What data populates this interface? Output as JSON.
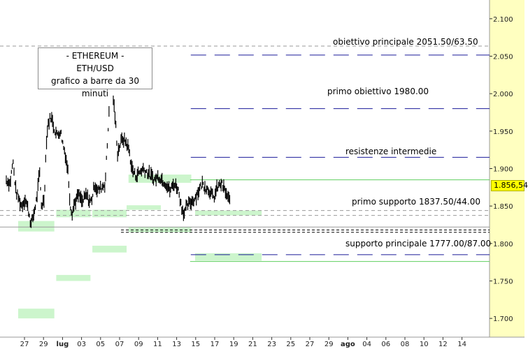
{
  "title_box": {
    "line1": "- ETHEREUM -",
    "line2": "ETH/USD",
    "line3": "grafico a barre da 30 minuti"
  },
  "annotations": {
    "target_main": "obiettivo principale 2051.50/63.50",
    "target_first": "primo obiettivo 1980.00",
    "resistance": "resistenze intermedie",
    "support_first": "primo supporto 1837.50/44.00",
    "support_main": "supporto principale 1777.00/87.00"
  },
  "current_price_label": "1.856,54",
  "colors": {
    "price_axis_bg": "#ffffc0",
    "zone_green": "#ccf5cc",
    "target_line": "#1a1a99",
    "bars": "#000000",
    "current_price_bg": "#ffff00"
  },
  "chart_data": {
    "type": "bar",
    "ylim": [
      1675,
      2125
    ],
    "y_ticks": [
      {
        "v": 2100,
        "label": "2.100"
      },
      {
        "v": 2050,
        "label": "2.050"
      },
      {
        "v": 2000,
        "label": "2.000"
      },
      {
        "v": 1950,
        "label": "1.950"
      },
      {
        "v": 1900,
        "label": "1.900"
      },
      {
        "v": 1850,
        "label": "1.850"
      },
      {
        "v": 1800,
        "label": "1.800"
      },
      {
        "v": 1750,
        "label": "1.750"
      },
      {
        "v": 1700,
        "label": "1.700"
      }
    ],
    "x_ticks": [
      "27",
      "29",
      "lug",
      "03",
      "05",
      "07",
      "09",
      "11",
      "13",
      "15",
      "17",
      "19",
      "21",
      "23",
      "25",
      "27",
      "29",
      "ago",
      "04",
      "06",
      "08",
      "10",
      "12",
      "14"
    ],
    "current_price": 1856.54,
    "target_levels": [
      2051.5,
      1980,
      1915,
      1785
    ],
    "support_levels": [
      1818,
      1815
    ],
    "zones": [
      {
        "day": 0,
        "days": 1.9,
        "lo": 1816,
        "hi": 1830
      },
      {
        "day": 0,
        "days": 1.9,
        "lo": 1700,
        "hi": 1713
      },
      {
        "day": 2.0,
        "days": 1.8,
        "lo": 1835,
        "hi": 1845
      },
      {
        "day": 2.0,
        "days": 1.8,
        "lo": 1750,
        "hi": 1758
      },
      {
        "day": 3.9,
        "days": 1.8,
        "lo": 1835,
        "hi": 1845
      },
      {
        "day": 3.9,
        "days": 1.8,
        "lo": 1788,
        "hi": 1797
      },
      {
        "day": 5.7,
        "days": 1.8,
        "lo": 1845,
        "hi": 1851
      },
      {
        "day": 5.8,
        "days": 3.3,
        "lo": 1881,
        "hi": 1892
      },
      {
        "day": 5.8,
        "days": 3.3,
        "lo": 1815,
        "hi": 1822
      },
      {
        "day": 9.3,
        "days": 3.5,
        "lo": 1837.5,
        "hi": 1844
      },
      {
        "day": 9.3,
        "days": 3.5,
        "lo": 1777,
        "hi": 1787
      }
    ],
    "price_path": [
      [
        0.0,
        1885
      ],
      [
        0.2,
        1880
      ],
      [
        0.35,
        1910
      ],
      [
        0.5,
        1870
      ],
      [
        0.65,
        1860
      ],
      [
        0.8,
        1850
      ],
      [
        1.0,
        1860
      ],
      [
        1.1,
        1850
      ],
      [
        1.2,
        1840
      ],
      [
        1.3,
        1825
      ],
      [
        1.45,
        1840
      ],
      [
        1.6,
        1860
      ],
      [
        1.75,
        1895
      ],
      [
        1.85,
        1850
      ],
      [
        2.0,
        1860
      ],
      [
        2.1,
        1935
      ],
      [
        2.2,
        1960
      ],
      [
        2.35,
        1970
      ],
      [
        2.5,
        1955
      ],
      [
        2.65,
        1945
      ],
      [
        2.85,
        1950
      ],
      [
        3.0,
        1930
      ],
      [
        3.1,
        1920
      ],
      [
        3.25,
        1895
      ],
      [
        3.35,
        1855
      ],
      [
        3.45,
        1840
      ],
      [
        3.6,
        1855
      ],
      [
        3.8,
        1865
      ],
      [
        4.0,
        1855
      ],
      [
        4.2,
        1865
      ],
      [
        4.4,
        1855
      ],
      [
        4.5,
        1860
      ],
      [
        4.65,
        1880
      ],
      [
        4.8,
        1870
      ],
      [
        5.0,
        1875
      ],
      [
        5.2,
        1880
      ],
      [
        5.35,
        1950
      ],
      [
        5.45,
        2010
      ],
      [
        5.55,
        2020
      ],
      [
        5.65,
        1985
      ],
      [
        5.75,
        1960
      ],
      [
        5.85,
        1920
      ],
      [
        5.95,
        1930
      ],
      [
        6.1,
        1940
      ],
      [
        6.3,
        1935
      ],
      [
        6.45,
        1925
      ],
      [
        6.6,
        1900
      ],
      [
        6.8,
        1890
      ],
      [
        7.0,
        1895
      ],
      [
        7.2,
        1900
      ],
      [
        7.4,
        1895
      ],
      [
        7.6,
        1890
      ],
      [
        7.8,
        1885
      ],
      [
        8.0,
        1890
      ],
      [
        8.2,
        1885
      ],
      [
        8.4,
        1880
      ],
      [
        8.6,
        1870
      ],
      [
        8.8,
        1880
      ],
      [
        9.0,
        1875
      ],
      [
        9.1,
        1865
      ],
      [
        9.2,
        1850
      ],
      [
        9.35,
        1840
      ],
      [
        9.5,
        1850
      ],
      [
        9.7,
        1855
      ],
      [
        9.9,
        1860
      ],
      [
        10.1,
        1870
      ],
      [
        10.3,
        1880
      ],
      [
        10.5,
        1875
      ],
      [
        10.7,
        1870
      ],
      [
        10.9,
        1860
      ],
      [
        11.1,
        1875
      ],
      [
        11.3,
        1880
      ],
      [
        11.5,
        1870
      ],
      [
        11.65,
        1860
      ],
      [
        11.75,
        1856.54
      ]
    ]
  }
}
